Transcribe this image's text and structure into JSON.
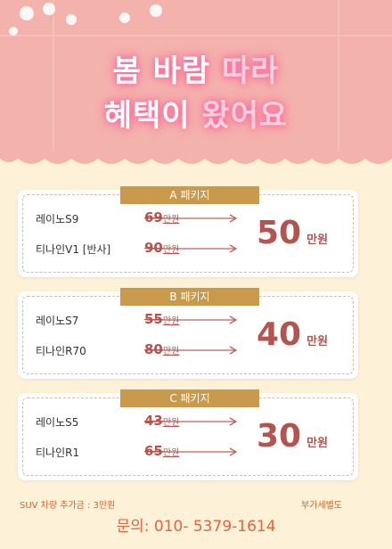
{
  "header": {
    "title_line1": {
      "plain": "봄 바람",
      "accent": "따라"
    },
    "title_line2": {
      "plain": "혜택이",
      "accent": "왔어요"
    }
  },
  "packages": [
    {
      "label": "A 패키지",
      "items": [
        {
          "name": "레이노S9",
          "price": "69",
          "price_unit": "만원"
        },
        {
          "name": "티나인V1 [반사]",
          "price": "90",
          "price_unit": "만원"
        }
      ],
      "total": "50",
      "total_unit": "만원"
    },
    {
      "label": "B 패키지",
      "items": [
        {
          "name": "레이노S7",
          "price": "55",
          "price_unit": "만원"
        },
        {
          "name": "티나인R70",
          "price": "80",
          "price_unit": "만원"
        }
      ],
      "total": "40",
      "total_unit": "만원"
    },
    {
      "label": "C 패키지",
      "items": [
        {
          "name": "레이노S5",
          "price": "43",
          "price_unit": "만원"
        },
        {
          "name": "티나인R1",
          "price": "65",
          "price_unit": "만원"
        }
      ],
      "total": "30",
      "total_unit": "만원"
    }
  ],
  "footer": {
    "note_left": "SUV 차량 추가금 : 3만원",
    "note_right": "부가세별도",
    "contact": "문의: 010- 5379-1614"
  }
}
